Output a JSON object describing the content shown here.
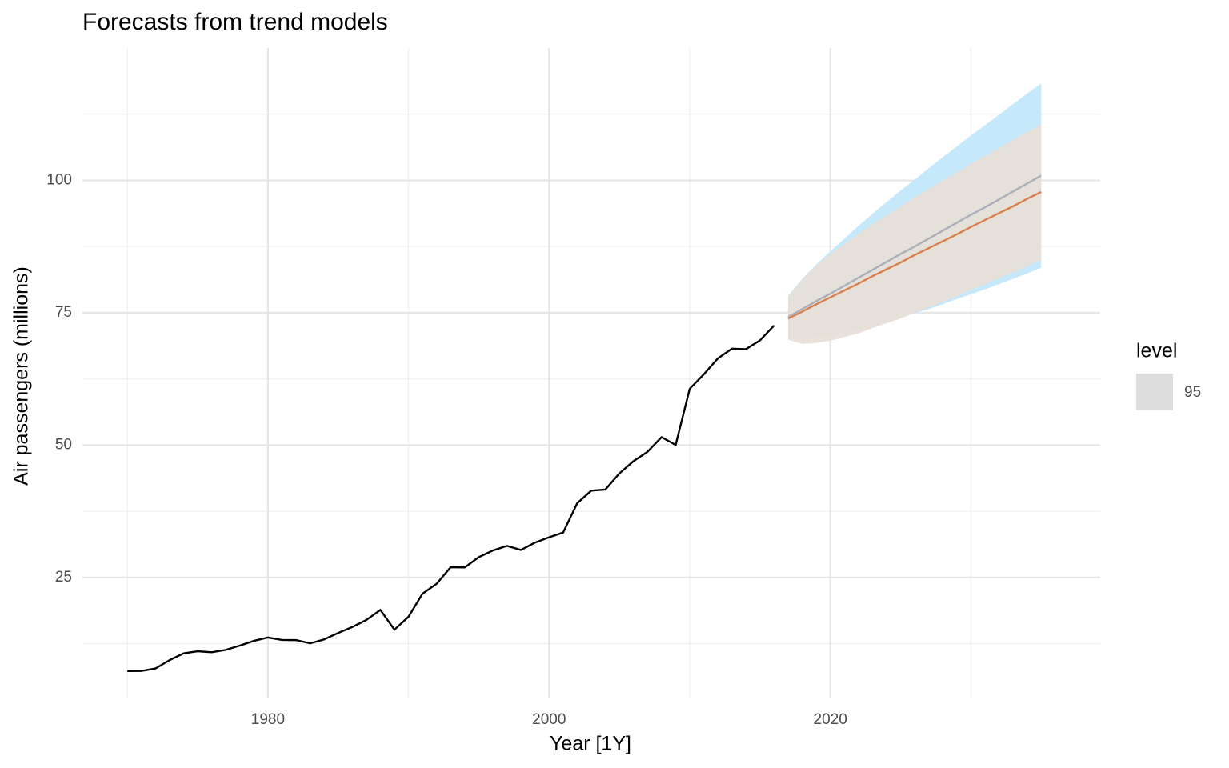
{
  "chart_data": {
    "type": "line",
    "title": "Forecasts from trend models",
    "x_label": "Year [1Y]",
    "y_label": "Air passengers (millions)",
    "xlim": [
      1966.8,
      2039.2
    ],
    "ylim": [
      2.3,
      125
    ],
    "xticks": [
      1980,
      2000,
      2020
    ],
    "yticks": [
      25,
      50,
      75,
      100
    ],
    "x_minor_grid": [
      1970,
      1990,
      2010,
      2030
    ],
    "y_minor_grid": [
      12.5,
      37.5,
      62.5,
      87.5,
      112.5
    ],
    "grid": true,
    "bands": [
      {
        "color": "#c5e8fb",
        "x": [
          2017,
          2018,
          2019,
          2020,
          2021,
          2022,
          2023,
          2024,
          2025,
          2026,
          2027,
          2028,
          2029,
          2030,
          2031,
          2032,
          2033,
          2034,
          2035
        ],
        "lower": [
          70.2,
          70.0,
          70.3,
          70.6,
          71.2,
          71.8,
          72.5,
          73.3,
          74.1,
          74.9,
          75.7,
          76.6,
          77.6,
          78.5,
          79.4,
          80.4,
          81.4,
          82.4,
          83.5
        ],
        "upper": [
          78.2,
          81.4,
          84.1,
          86.6,
          89.0,
          91.4,
          93.7,
          95.9,
          98.1,
          100.1,
          102.3,
          104.4,
          106.4,
          108.5,
          110.4,
          112.4,
          114.4,
          116.4,
          118.3
        ]
      },
      {
        "color": "#e8dfd6",
        "x": [
          2017,
          2018,
          2019,
          2020,
          2021,
          2022,
          2023,
          2024,
          2025,
          2026,
          2027,
          2028,
          2029,
          2030,
          2031,
          2032,
          2033,
          2034,
          2035
        ],
        "lower": [
          69.9,
          69.1,
          69.3,
          69.7,
          70.4,
          71.1,
          72.1,
          73.0,
          73.9,
          75.0,
          76.0,
          77.0,
          78.1,
          79.3,
          80.4,
          81.5,
          82.6,
          83.8,
          85.0
        ],
        "upper": [
          77.9,
          81.3,
          83.9,
          86.1,
          88.0,
          89.9,
          91.7,
          93.4,
          95.1,
          96.8,
          98.4,
          100.0,
          101.5,
          103.1,
          104.6,
          106.1,
          107.6,
          109.2,
          110.6
        ]
      }
    ],
    "series": [
      {
        "color": "#000000",
        "x": [
          1970,
          1971,
          1972,
          1973,
          1974,
          1975,
          1976,
          1977,
          1978,
          1979,
          1980,
          1981,
          1982,
          1983,
          1984,
          1985,
          1986,
          1987,
          1988,
          1989,
          1990,
          1991,
          1992,
          1993,
          1994,
          1995,
          1996,
          1997,
          1998,
          1999,
          2000,
          2001,
          2002,
          2003,
          2004,
          2005,
          2006,
          2007,
          2008,
          2009,
          2010,
          2011,
          2012,
          2013,
          2014,
          2015,
          2016
        ],
        "values": [
          7.32,
          7.33,
          7.8,
          9.38,
          10.66,
          11.06,
          10.86,
          11.31,
          12.12,
          13.02,
          13.65,
          13.19,
          13.16,
          12.56,
          13.29,
          14.51,
          15.63,
          16.97,
          18.86,
          15.13,
          17.57,
          21.94,
          23.8,
          26.93,
          26.89,
          28.83,
          30.08,
          30.95,
          30.19,
          31.58,
          32.58,
          33.48,
          39.02,
          41.39,
          41.6,
          44.66,
          46.95,
          48.73,
          51.49,
          50.03,
          60.64,
          63.36,
          66.36,
          68.2,
          68.12,
          69.78,
          72.6
        ]
      },
      {
        "color": "#aab0b8",
        "x": [
          2017,
          2018,
          2019,
          2020,
          2021,
          2022,
          2023,
          2024,
          2025,
          2026,
          2027,
          2028,
          2029,
          2030,
          2031,
          2032,
          2033,
          2034,
          2035
        ],
        "values": [
          74.2,
          75.7,
          77.2,
          78.6,
          80.1,
          81.6,
          83.1,
          84.6,
          86.1,
          87.5,
          89.0,
          90.5,
          92.0,
          93.5,
          94.9,
          96.4,
          97.9,
          99.4,
          100.9
        ]
      },
      {
        "color": "#d9804f",
        "x": [
          2017,
          2018,
          2019,
          2020,
          2021,
          2022,
          2023,
          2024,
          2025,
          2026,
          2027,
          2028,
          2029,
          2030,
          2031,
          2032,
          2033,
          2034,
          2035
        ],
        "values": [
          73.9,
          75.2,
          76.6,
          77.9,
          79.2,
          80.5,
          81.9,
          83.2,
          84.5,
          85.9,
          87.2,
          88.5,
          89.8,
          91.2,
          92.5,
          93.8,
          95.1,
          96.5,
          97.8
        ]
      }
    ],
    "legend": {
      "title": "level",
      "position": "right",
      "entries": [
        {
          "label": 95,
          "color": "#dddddd"
        }
      ]
    }
  }
}
